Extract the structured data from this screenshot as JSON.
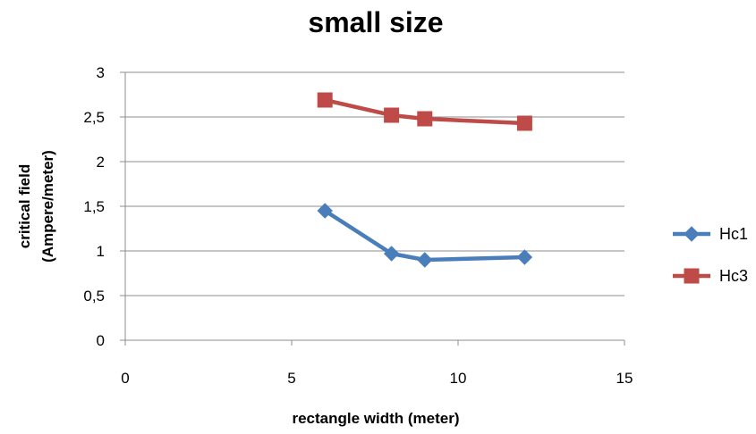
{
  "chart_data": {
    "type": "scatter",
    "title": "small size",
    "xlabel": "rectangle width (meter)",
    "ylabel_lines": [
      "critical field",
      "(Ampere/meter)"
    ],
    "xlim": [
      0,
      15
    ],
    "ylim": [
      0,
      3
    ],
    "x_ticks": [
      "0",
      "5",
      "10",
      "15"
    ],
    "y_ticks": [
      "0",
      "0,5",
      "1",
      "1,5",
      "2",
      "2,5",
      "3"
    ],
    "grid": "horizontal",
    "legend_position": "right",
    "series": [
      {
        "name": "Hc1",
        "color": "#4a7ebb",
        "marker": "diamond",
        "x": [
          6,
          8,
          9,
          12
        ],
        "y": [
          1.45,
          0.97,
          0.9,
          0.93
        ]
      },
      {
        "name": "Hc3",
        "color": "#be4b48",
        "marker": "square",
        "x": [
          6,
          8,
          9,
          12
        ],
        "y": [
          2.69,
          2.52,
          2.48,
          2.43
        ]
      }
    ]
  }
}
